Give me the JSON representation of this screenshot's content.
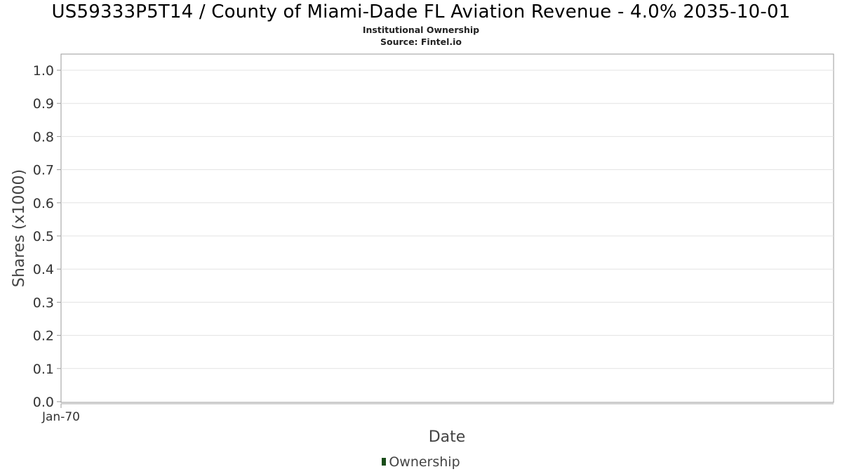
{
  "chart_data": {
    "type": "line",
    "title": "US59333P5T14 / County of Miami-Dade FL Aviation Revenue - 4.0% 2035-10-01",
    "subtitle": "Institutional Ownership",
    "source": "Source: Fintel.io",
    "xlabel": "Date",
    "ylabel": "Shares (x1000)",
    "ylim": [
      0,
      1.0
    ],
    "yticks": [
      "0.0",
      "0.1",
      "0.2",
      "0.3",
      "0.4",
      "0.5",
      "0.6",
      "0.7",
      "0.8",
      "0.9",
      "1.0"
    ],
    "xticks": [
      "Jan-70"
    ],
    "grid": true,
    "legend_position": "bottom",
    "series": [
      {
        "name": "Ownership",
        "color": "#1a4d1a",
        "values": []
      }
    ]
  }
}
